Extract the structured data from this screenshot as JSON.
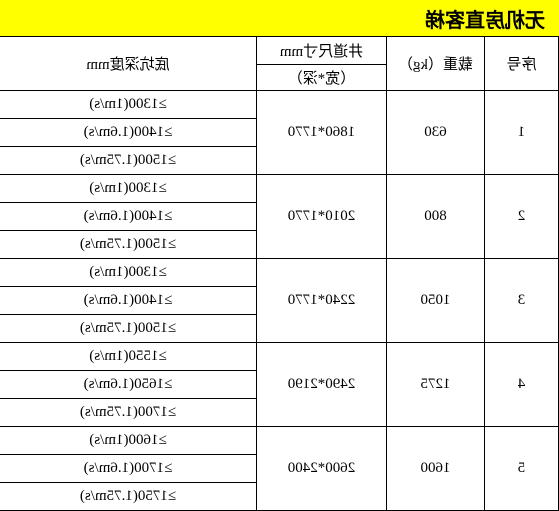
{
  "title": "无机房直客梯",
  "headers": {
    "seq": "序号",
    "load": "载重（kg）",
    "dim_top": "井道尺寸mm",
    "dim_sub": "（宽*深）",
    "depth": "底坑深度mm"
  },
  "rows": [
    {
      "seq": "1",
      "load": "630",
      "dim": "1860*1770",
      "depths": [
        "≥1300(1m/s)",
        "≥1400(1.6m/s)",
        "≥1500(1.75m/s)"
      ]
    },
    {
      "seq": "2",
      "load": "800",
      "dim": "2010*1770",
      "depths": [
        "≥1300(1m/s)",
        "≥1400(1.6m/s)",
        "≥1500(1.75m/s)"
      ]
    },
    {
      "seq": "3",
      "load": "1050",
      "dim": "2240*1770",
      "depths": [
        "≥1300(1m/s)",
        "≥1400(1.6m/s)",
        "≥1500(1.75m/s)"
      ]
    },
    {
      "seq": "4",
      "load": "1275",
      "dim": "2490*2190",
      "depths": [
        "≥1550(1m/s)",
        "≥1650(1.6m/s)",
        "≥1700(1.75m/s)"
      ]
    },
    {
      "seq": "5",
      "load": "1600",
      "dim": "2600*2400",
      "depths": [
        "≥1600(1m/s)",
        "≥1700(1.6m/s)",
        "≥1750(1.75m/s)"
      ]
    }
  ]
}
